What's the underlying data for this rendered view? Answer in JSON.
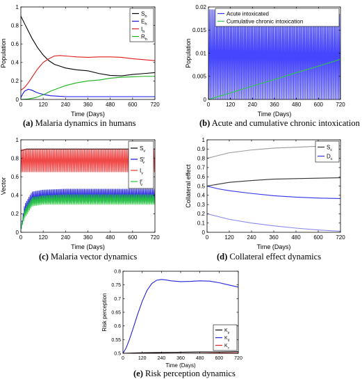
{
  "chart_data": [
    {
      "id": "a",
      "type": "line",
      "caption_label": "(a)",
      "caption_text": "Malaria dynamics in humans",
      "xlabel": "Time (Days)",
      "ylabel": "Population",
      "xlim": [
        0,
        720
      ],
      "ylim": [
        0,
        1
      ],
      "xticks": [
        0,
        120,
        240,
        360,
        480,
        600,
        720
      ],
      "yticks": [
        0,
        0.2,
        0.4,
        0.6,
        0.8,
        1
      ],
      "ytick_labels": [
        "0",
        "0.2",
        "0.4",
        "0.6",
        "0.8",
        "1"
      ],
      "legend_position": "top-right",
      "series": [
        {
          "name": "S",
          "sub": "h",
          "color": "#000000",
          "x": [
            0,
            20,
            40,
            60,
            90,
            120,
            150,
            180,
            210,
            240,
            300,
            360,
            420,
            480,
            540,
            600,
            660,
            720
          ],
          "y": [
            0.9,
            0.82,
            0.74,
            0.66,
            0.56,
            0.48,
            0.42,
            0.38,
            0.36,
            0.34,
            0.32,
            0.31,
            0.28,
            0.26,
            0.255,
            0.27,
            0.28,
            0.29
          ]
        },
        {
          "name": "E",
          "sub": "h",
          "color": "#1515e0",
          "x": [
            0,
            10,
            20,
            40,
            60,
            80,
            100,
            130,
            160,
            200,
            240,
            300,
            360,
            480,
            600,
            720
          ],
          "y": [
            0.02,
            0.06,
            0.09,
            0.11,
            0.1,
            0.08,
            0.065,
            0.05,
            0.04,
            0.035,
            0.03,
            0.03,
            0.03,
            0.03,
            0.03,
            0.03
          ]
        },
        {
          "name": "I",
          "sub": "h",
          "color": "#e01a1a",
          "x": [
            0,
            20,
            40,
            60,
            90,
            120,
            150,
            180,
            210,
            240,
            300,
            360,
            420,
            480,
            540,
            600,
            660,
            720
          ],
          "y": [
            0.1,
            0.13,
            0.18,
            0.24,
            0.33,
            0.4,
            0.44,
            0.47,
            0.475,
            0.47,
            0.46,
            0.455,
            0.46,
            0.46,
            0.455,
            0.44,
            0.43,
            0.42
          ]
        },
        {
          "name": "R",
          "sub": "h",
          "color": "#1ab01a",
          "x": [
            0,
            40,
            80,
            120,
            160,
            200,
            240,
            300,
            360,
            420,
            480,
            540,
            600,
            660,
            720
          ],
          "y": [
            0,
            0.005,
            0.02,
            0.05,
            0.09,
            0.12,
            0.15,
            0.18,
            0.2,
            0.21,
            0.23,
            0.24,
            0.245,
            0.25,
            0.25
          ]
        }
      ]
    },
    {
      "id": "b",
      "type": "line",
      "caption_label": "(b)",
      "caption_text": "Acute and cumulative chronic intoxication",
      "xlabel": "Time (Days)",
      "ylabel": "Population",
      "xlim": [
        0,
        720
      ],
      "ylim": [
        0,
        0.02
      ],
      "xticks": [
        0,
        120,
        240,
        360,
        480,
        600,
        720
      ],
      "yticks": [
        0,
        0.005,
        0.01,
        0.015,
        0.02
      ],
      "ytick_labels": [
        "0",
        "0.005",
        "0.01",
        "0.015",
        "0.02"
      ],
      "legend_position": "top-right",
      "series": [
        {
          "name": "Acute intoxicated",
          "color": "#3232ff",
          "oscillating": true,
          "x": [
            0,
            360,
            720
          ],
          "upper": [
            0.0195,
            0.019,
            0.0185
          ],
          "lower": [
            0.0,
            0.0,
            0.0
          ]
        },
        {
          "name": "Cumulative chronic intoxication",
          "color": "#2ecc40",
          "x": [
            0,
            120,
            240,
            360,
            480,
            600,
            720
          ],
          "y": [
            0,
            0.0014,
            0.0029,
            0.0043,
            0.0058,
            0.0072,
            0.0087
          ]
        }
      ]
    },
    {
      "id": "c",
      "type": "line",
      "caption_label": "(c)",
      "caption_text": "Malaria vector dynamics",
      "xlabel": "Time (Days)",
      "ylabel": "Vector",
      "xlim": [
        0,
        720
      ],
      "ylim": [
        0,
        1
      ],
      "xticks": [
        0,
        120,
        240,
        360,
        480,
        600,
        720
      ],
      "yticks": [
        0,
        0.2,
        0.4,
        0.6,
        0.8,
        1
      ],
      "ytick_labels": [
        "0",
        "0.2",
        "0.4",
        "0.6",
        "0.8",
        "1"
      ],
      "legend_position": "top-right",
      "series": [
        {
          "name": "S",
          "sub": "v",
          "color": "#000000",
          "x": [
            0,
            30,
            60,
            120,
            240,
            360,
            480,
            600,
            720
          ],
          "y": [
            0.88,
            0.9,
            0.9,
            0.9,
            0.9,
            0.9,
            0.9,
            0.9,
            0.9
          ]
        },
        {
          "name": "S",
          "sub": "v",
          "sup": "r",
          "color": "#1515e0",
          "oscillating": true,
          "x": [
            0,
            20,
            60,
            120,
            240,
            480,
            720
          ],
          "upper": [
            0.05,
            0.3,
            0.44,
            0.46,
            0.47,
            0.47,
            0.47
          ],
          "lower": [
            0.02,
            0.18,
            0.3,
            0.32,
            0.32,
            0.32,
            0.32
          ]
        },
        {
          "name": "I",
          "sub": "v",
          "color": "#ee3333",
          "oscillating": true,
          "x": [
            0,
            30,
            120,
            360,
            720
          ],
          "upper": [
            0.9,
            0.9,
            0.9,
            0.9,
            0.9
          ],
          "lower": [
            0.65,
            0.65,
            0.65,
            0.65,
            0.65
          ]
        },
        {
          "name": "I",
          "sub": "v",
          "sup": "r",
          "color": "#22cc33",
          "oscillating": true,
          "x": [
            0,
            20,
            60,
            120,
            240,
            480,
            720
          ],
          "upper": [
            0.05,
            0.25,
            0.38,
            0.4,
            0.41,
            0.41,
            0.41
          ],
          "lower": [
            0.02,
            0.15,
            0.28,
            0.3,
            0.3,
            0.3,
            0.3
          ]
        }
      ]
    },
    {
      "id": "d",
      "type": "line",
      "caption_label": "(d)",
      "caption_text": "Collateral effect dynamics",
      "xlabel": "Time (Days)",
      "ylabel": "Collateral effect",
      "xlim": [
        0,
        720
      ],
      "ylim": [
        0,
        1
      ],
      "xticks": [
        0,
        120,
        240,
        360,
        480,
        600,
        720
      ],
      "yticks": [
        0,
        0.1,
        0.2,
        0.3,
        0.4,
        0.5,
        0.6,
        0.7,
        0.8,
        0.9,
        1
      ],
      "ytick_labels": [
        "0",
        "0.1",
        "0.2",
        "0.3",
        "0.4",
        "0.5",
        "0.6",
        "0.7",
        "0.8",
        "0.9",
        "1"
      ],
      "legend_position": "top-right",
      "series": [
        {
          "name": "S",
          "sub": "c",
          "color": "#333333",
          "x": [
            0,
            60,
            120,
            240,
            360,
            480,
            600,
            720
          ],
          "y": [
            0.5,
            0.52,
            0.54,
            0.56,
            0.575,
            0.58,
            0.585,
            0.59
          ]
        },
        {
          "name": "D",
          "sub": "c",
          "color": "#3333ee",
          "x": [
            0,
            60,
            120,
            240,
            360,
            480,
            600,
            720
          ],
          "y": [
            0.5,
            0.47,
            0.45,
            0.42,
            0.395,
            0.38,
            0.37,
            0.365
          ]
        },
        {
          "color": "#999999",
          "x": [
            0,
            60,
            120,
            240,
            360,
            480,
            600,
            720
          ],
          "y": [
            0.8,
            0.83,
            0.86,
            0.89,
            0.91,
            0.92,
            0.93,
            0.935
          ]
        },
        {
          "color": "#8888ee",
          "x": [
            0,
            60,
            120,
            240,
            360,
            480,
            600,
            720
          ],
          "y": [
            0.2,
            0.17,
            0.14,
            0.1,
            0.07,
            0.045,
            0.025,
            0.012
          ]
        }
      ]
    },
    {
      "id": "e",
      "type": "line",
      "caption_label": "(e)",
      "caption_text": "Risk perception dynamics",
      "xlabel": "Time (Days)",
      "ylabel": "Risk perception",
      "xlim": [
        0,
        720
      ],
      "ylim": [
        0.5,
        0.8
      ],
      "xticks": [
        0,
        120,
        240,
        360,
        480,
        600,
        720
      ],
      "yticks": [
        0.5,
        0.55,
        0.6,
        0.65,
        0.7,
        0.75,
        0.8
      ],
      "ytick_labels": [
        "0.5",
        "0.55",
        "0.6",
        "0.65",
        "0.7",
        "0.75",
        "0.8"
      ],
      "legend_position": "center-right",
      "series": [
        {
          "name": "K",
          "sub": "p",
          "color": "#000000",
          "x": [
            0,
            60,
            120,
            240,
            360,
            480,
            600,
            720
          ],
          "y": [
            0.5,
            0.501,
            0.502,
            0.503,
            0.504,
            0.505,
            0.505,
            0.506
          ]
        },
        {
          "name": "K",
          "sub": "d",
          "color": "#2222dd",
          "x": [
            0,
            20,
            40,
            60,
            90,
            120,
            150,
            180,
            210,
            240,
            270,
            300,
            360,
            420,
            480,
            540,
            600,
            660,
            720
          ],
          "y": [
            0.5,
            0.52,
            0.55,
            0.585,
            0.64,
            0.69,
            0.73,
            0.755,
            0.767,
            0.77,
            0.768,
            0.765,
            0.762,
            0.763,
            0.765,
            0.764,
            0.758,
            0.75,
            0.742
          ]
        },
        {
          "name": "K",
          "sub": "c",
          "color": "#dd2222",
          "x": [
            0,
            60,
            120,
            240,
            360,
            480,
            600,
            720
          ],
          "y": [
            0.5,
            0.5,
            0.5,
            0.5,
            0.5,
            0.5,
            0.501,
            0.501
          ]
        }
      ]
    }
  ]
}
